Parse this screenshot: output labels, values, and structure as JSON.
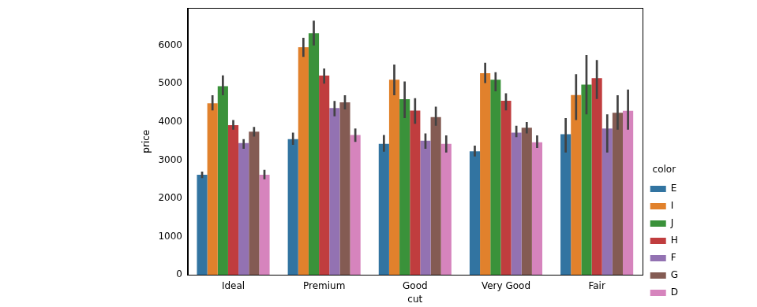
{
  "chart_data": {
    "type": "bar",
    "x_label": "cut",
    "y_label": "price",
    "categories": [
      "Ideal",
      "Premium",
      "Good",
      "Very Good",
      "Fair"
    ],
    "ylim": [
      0,
      6980
    ],
    "yticks": [
      0,
      1000,
      2000,
      3000,
      4000,
      5000,
      6000
    ],
    "grid": false,
    "legend": "right",
    "legend_title": "color",
    "series": [
      {
        "name": "E",
        "color": "#3274a1",
        "values": [
          2617,
          3553,
          3426,
          3234,
          3680
        ],
        "ci_low": [
          2530,
          3400,
          3220,
          3100,
          3200
        ],
        "ci_high": [
          2700,
          3720,
          3660,
          3380,
          4100
        ]
      },
      {
        "name": "I",
        "color": "#e1812c",
        "values": [
          4490,
          5957,
          5107,
          5277,
          4702
        ],
        "ci_low": [
          4300,
          5700,
          4700,
          5020,
          4050
        ],
        "ci_high": [
          4700,
          6200,
          5500,
          5550,
          5250
        ]
      },
      {
        "name": "J",
        "color": "#3a923a",
        "values": [
          4936,
          6319,
          4596,
          5107,
          4975
        ],
        "ci_low": [
          4700,
          6000,
          4100,
          4800,
          4200
        ],
        "ci_high": [
          5220,
          6650,
          5060,
          5300,
          5750
        ]
      },
      {
        "name": "H",
        "color": "#c03d3e",
        "values": [
          3915,
          5213,
          4298,
          4553,
          5149
        ],
        "ci_low": [
          3800,
          5000,
          3950,
          4300,
          4600
        ],
        "ci_high": [
          4050,
          5400,
          4620,
          4750,
          5620
        ]
      },
      {
        "name": "F",
        "color": "#9372b2",
        "values": [
          3447,
          4362,
          3511,
          3723,
          3827
        ],
        "ci_low": [
          3300,
          4150,
          3300,
          3600,
          3200
        ],
        "ci_high": [
          3550,
          4550,
          3700,
          3900,
          4200
        ]
      },
      {
        "name": "G",
        "color": "#845b53",
        "values": [
          3745,
          4511,
          4128,
          3851,
          4239
        ],
        "ci_low": [
          3620,
          4330,
          3900,
          3700,
          3800
        ],
        "ci_high": [
          3870,
          4700,
          4400,
          4000,
          4700
        ]
      },
      {
        "name": "D",
        "color": "#d684bd",
        "values": [
          2617,
          3660,
          3426,
          3468,
          4291
        ],
        "ci_low": [
          2500,
          3480,
          3200,
          3320,
          3800
        ],
        "ci_high": [
          2750,
          3830,
          3650,
          3650,
          4850
        ]
      }
    ]
  }
}
